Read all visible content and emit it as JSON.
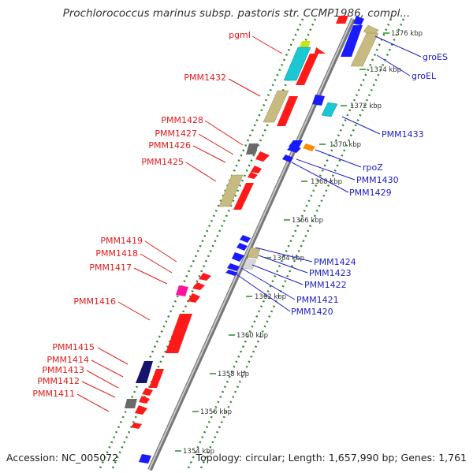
{
  "title": "Prochlorococcus marinus subsp. pastoris str. CCMP1986, compl...",
  "accession": "Accession: NC_005072",
  "summary": "Topology: circular; Length: 1,657,990 bp; Genes: 1,761",
  "colors": {
    "forward": "#ff1a1a",
    "reverse": "#1a1aff",
    "forward_label": "#e21a1a",
    "reverse_label": "#1c1cc8",
    "ticks": "#2a8a2a",
    "backbone": "#9a9a9a"
  },
  "kbp_ticks": [
    "1376 kbp",
    "1374 kbp",
    "1372 kbp",
    "1370 kbp",
    "1368 kbp",
    "1366 kbp",
    "1364 kbp",
    "1362 kbp",
    "1360 kbp",
    "1358 kbp",
    "1356 kbp",
    "1354 kbp"
  ],
  "left_labels": [
    "pgmI",
    "PMM1432",
    "PMM1428",
    "PMM1427",
    "PMM1426",
    "PMM1425",
    "PMM1419",
    "PMM1418",
    "PMM1417",
    "PMM1416",
    "PMM1415",
    "PMM1414",
    "PMM1413",
    "PMM1412",
    "PMM1411"
  ],
  "right_labels": [
    "groES",
    "groEL",
    "PMM1433",
    "rpoZ",
    "PMM1430",
    "PMM1429",
    "PMM1424",
    "PMM1423",
    "PMM1422",
    "PMM1421",
    "PMM1420"
  ]
}
